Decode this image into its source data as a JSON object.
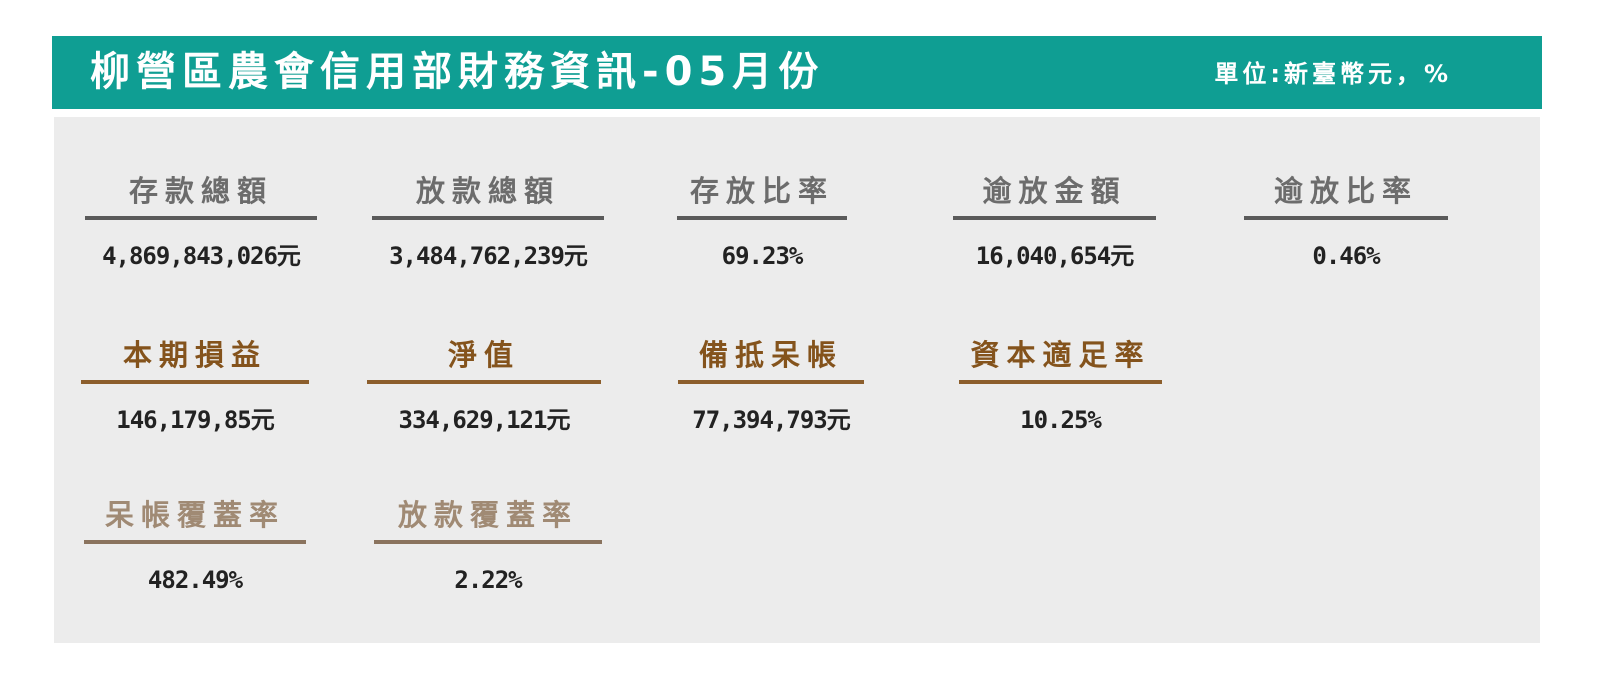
{
  "header": {
    "title": "柳營區農會信用部財務資訊-05月份",
    "unit": "單位:新臺幣元，%"
  },
  "metrics": [
    {
      "label": "存款總額",
      "value": "4,869,843,026元"
    },
    {
      "label": "放款總額",
      "value": "3,484,762,239元"
    },
    {
      "label": "存放比率",
      "value": "69.23%"
    },
    {
      "label": "逾放金額",
      "value": "16,040,654元"
    },
    {
      "label": "逾放比率",
      "value": "0.46%"
    },
    {
      "label": "本期損益",
      "value": "146,179,85元"
    },
    {
      "label": "淨值",
      "value": "334,629,121元"
    },
    {
      "label": "備抵呆帳",
      "value": "77,394,793元"
    },
    {
      "label": "資本適足率",
      "value": "10.25%"
    },
    {
      "label": "呆帳覆蓋率",
      "value": "482.49%"
    },
    {
      "label": "放款覆蓋率",
      "value": "2.22%"
    }
  ],
  "colors": {
    "header_bg": "#0f9e93",
    "panel_bg": "#ececec",
    "gray_label": "#6c6c6c",
    "brown_label": "#84531c",
    "tan_label": "#a08a74"
  }
}
